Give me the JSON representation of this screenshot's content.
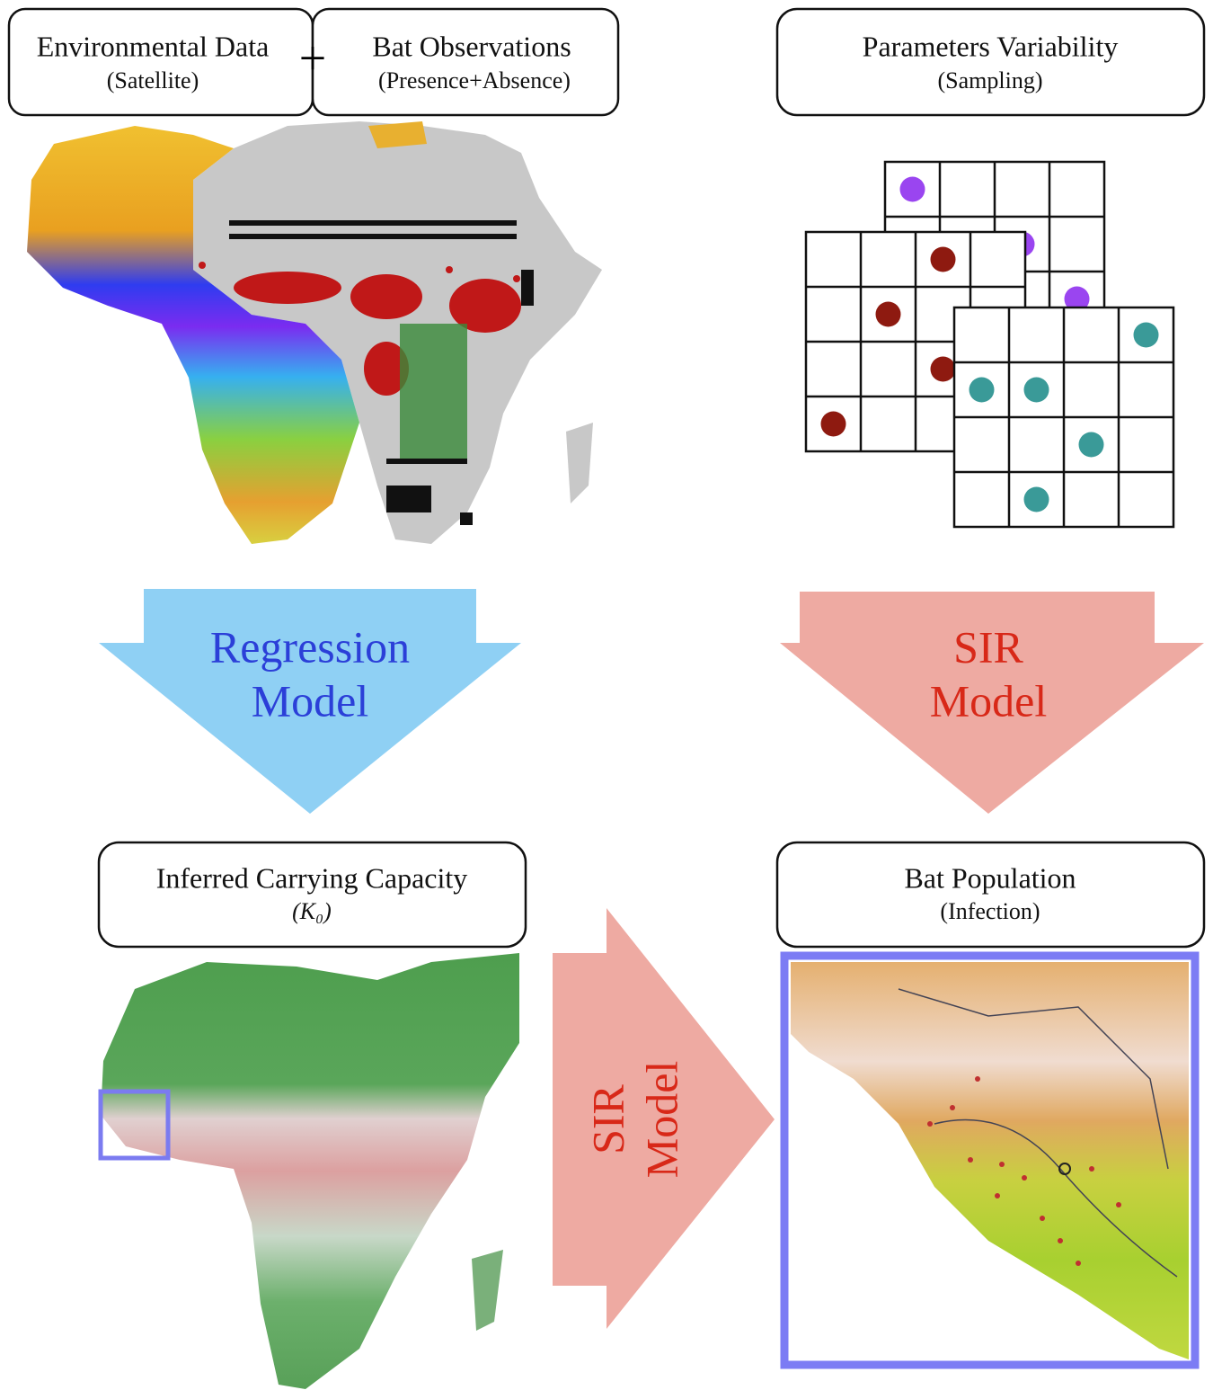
{
  "boxes": [
    {
      "title": "Environmental Data",
      "subtitle": "(Satellite)"
    },
    {
      "title": "Bat Observations",
      "subtitle": "(Presence+Absence)"
    },
    {
      "title": "Parameters Variability",
      "subtitle": "(Sampling)"
    },
    {
      "title": "Inferred Carrying Capacity",
      "subtitle": "(K₀)"
    },
    {
      "title": "Bat Population",
      "subtitle": "(Infection)"
    }
  ],
  "plus": "+",
  "arrows": [
    {
      "lines": [
        "Regression",
        "Model"
      ]
    },
    {
      "lines": [
        "SIR",
        "Model"
      ]
    },
    {
      "lines": [
        "SIR",
        "Model"
      ]
    }
  ]
}
